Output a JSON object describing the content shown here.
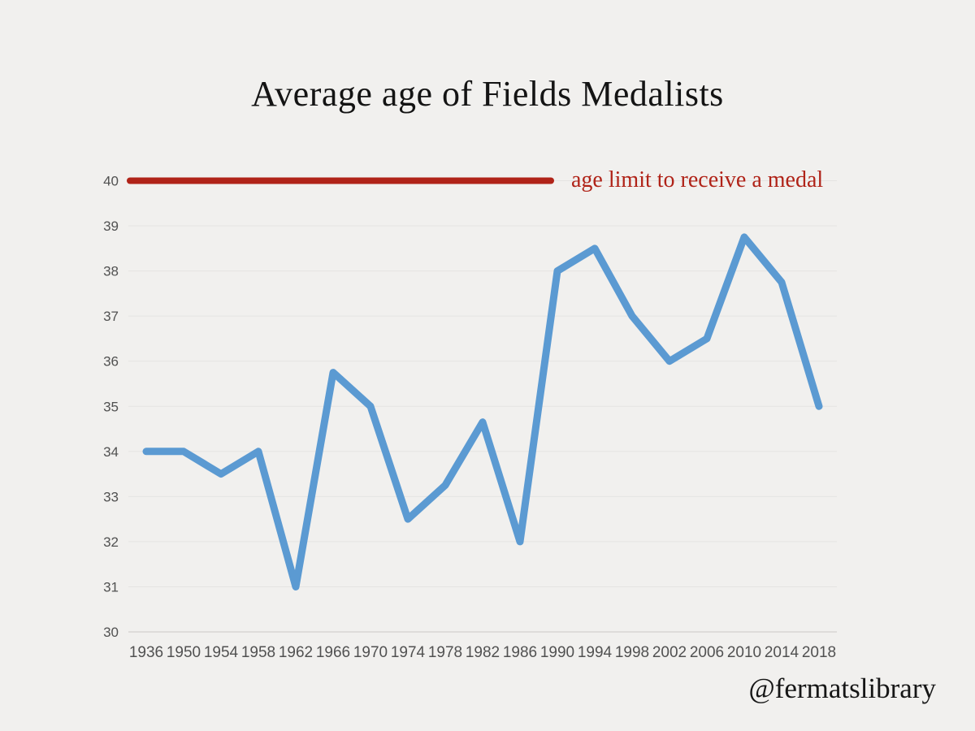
{
  "page": {
    "watermark": "@fermatslibrary",
    "background_color": "#f1f0ee"
  },
  "chart_data": {
    "type": "line",
    "title": "Average age of Fields Medalists",
    "xlabel": "",
    "ylabel": "",
    "categories": [
      "1936",
      "1950",
      "1954",
      "1958",
      "1962",
      "1966",
      "1970",
      "1974",
      "1978",
      "1982",
      "1986",
      "1990",
      "1994",
      "1998",
      "2002",
      "2006",
      "2010",
      "2014",
      "2018"
    ],
    "series": [
      {
        "name": "Average age of Fields Medalists",
        "values": [
          34,
          34,
          33.5,
          34,
          31,
          35.75,
          35,
          32.5,
          33.25,
          34.65,
          32,
          38,
          38.5,
          37,
          36,
          36.5,
          38.75,
          37.75,
          35
        ],
        "color": "#5b9ad2"
      }
    ],
    "annotation": {
      "label": "age limit to receive a medal",
      "value": 40,
      "color": "#b02318"
    },
    "ylim": [
      30,
      40
    ],
    "y_ticks": [
      30,
      31,
      32,
      33,
      34,
      35,
      36,
      37,
      38,
      39,
      40
    ],
    "grid": true,
    "legend": "none",
    "gridline_color": "#e5e4e2",
    "axis_line_color": "#d7d6d4",
    "tick_label_color": "#515151"
  }
}
